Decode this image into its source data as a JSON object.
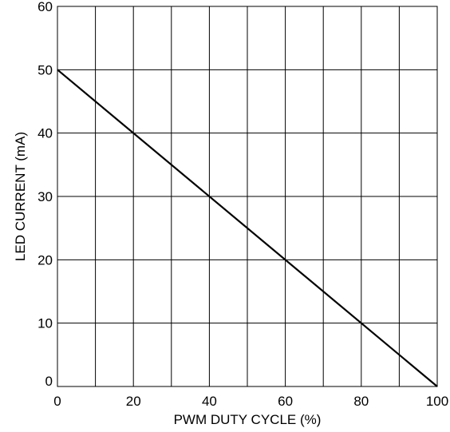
{
  "chart_data": {
    "type": "line",
    "title": "",
    "xlabel": "PWM DUTY CYCLE (%)",
    "ylabel": "LED CURRENT (mA)",
    "xlim": [
      0,
      100
    ],
    "ylim": [
      0,
      60
    ],
    "grid": true,
    "x_ticks": [
      0,
      20,
      40,
      60,
      80,
      100
    ],
    "x_tick_labels": [
      "0",
      "20",
      "40",
      "60",
      "80",
      "100"
    ],
    "x_grid": [
      0,
      10,
      20,
      30,
      40,
      50,
      60,
      70,
      80,
      90,
      100
    ],
    "y_ticks": [
      0,
      10,
      20,
      30,
      40,
      50,
      60
    ],
    "y_tick_labels": [
      "0",
      "10",
      "20",
      "30",
      "40",
      "50",
      "60"
    ],
    "series": [
      {
        "x": [
          0,
          100
        ],
        "y": [
          50,
          0
        ]
      }
    ],
    "colors": {
      "line": "#000000",
      "grid": "#000000"
    }
  }
}
